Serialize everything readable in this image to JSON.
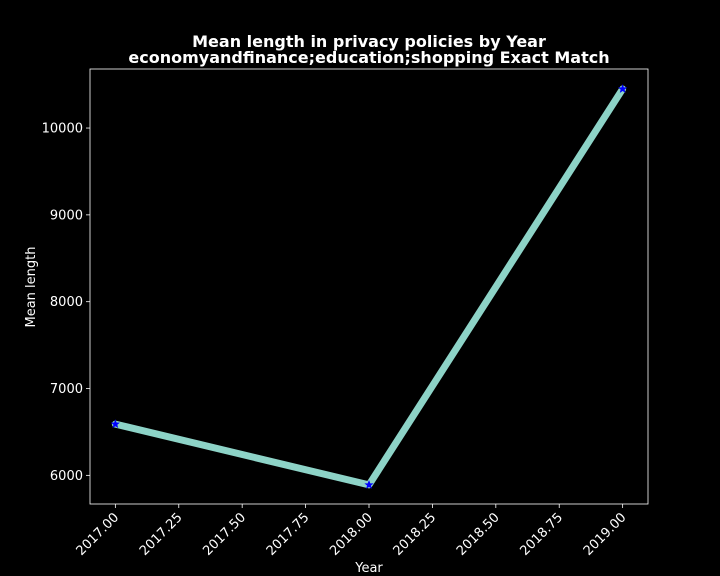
{
  "chart_data": {
    "type": "line",
    "title": "Mean length in privacy policies by Year",
    "subtitle": "economyandfinance;education;shopping Exact Match",
    "xlabel": "Year",
    "ylabel": "Mean length",
    "x": [
      2017,
      2018,
      2019
    ],
    "series": [
      {
        "values": [
          6590,
          5890,
          10450
        ]
      }
    ],
    "xlim": [
      2016.9,
      2019.1
    ],
    "ylim": [
      5670,
      10680
    ],
    "xticks": [
      "2017.00",
      "2017.25",
      "2017.50",
      "2017.75",
      "2018.00",
      "2018.25",
      "2018.50",
      "2018.75",
      "2019.00"
    ],
    "yticks": [
      "6000",
      "7000",
      "8000",
      "9000",
      "10000"
    ],
    "grid": false,
    "line_color": "#8dd3c7",
    "marker_color": "#0000ff",
    "marker": "star",
    "background": "#000000",
    "axis_color": "#ffffff"
  }
}
